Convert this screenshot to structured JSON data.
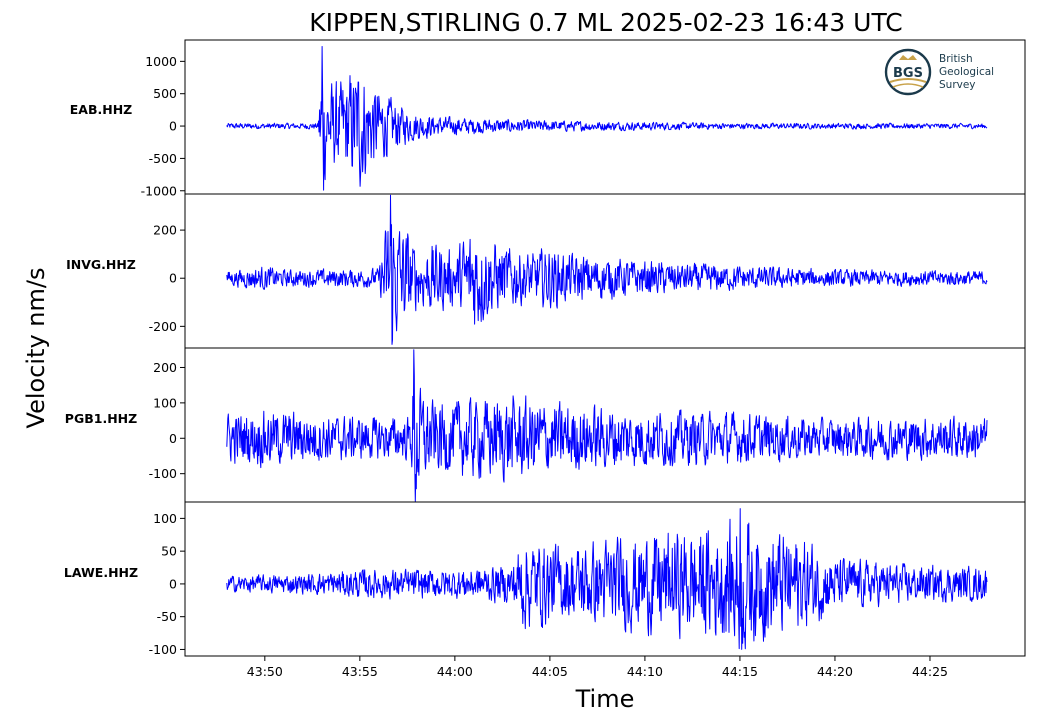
{
  "figure": {
    "title": "KIPPEN,STIRLING 0.7 ML   2025-02-23 16:43 UTC",
    "ylabel": "Velocity nm/s",
    "xlabel": "Time"
  },
  "logo": {
    "badge": "BGS",
    "lines": [
      "British",
      "Geological",
      "Survey"
    ]
  },
  "colors": {
    "trace": "#0000ff",
    "frame": "#000000"
  },
  "chart_data": {
    "type": "line",
    "x_unit": "mm:ss (16:mm:ss UTC)",
    "x_range": [
      "43:45.8",
      "44:30.0"
    ],
    "x_ticks": [
      "43:50",
      "43:55",
      "44:00",
      "44:05",
      "44:10",
      "44:15",
      "44:20",
      "44:25"
    ],
    "x_tick_values_s": [
      50,
      55,
      60,
      65,
      70,
      75,
      80,
      85
    ],
    "trace_start_s": 48,
    "trace_end_s": 88,
    "shared_x": true,
    "grid": false,
    "panels": [
      {
        "station": "EAB.HHZ",
        "ylim": [
          -1050,
          1330
        ],
        "yticks": [
          1000,
          500,
          0,
          -500,
          -1000
        ],
        "ytick_labels": [
          "1000",
          "500",
          "0",
          "-500",
          "-1000"
        ],
        "peak_max": 1230,
        "peak_min": -990,
        "envelope": [
          [
            48,
            45
          ],
          [
            52.8,
            45
          ],
          [
            53.0,
            1230
          ],
          [
            53.3,
            700
          ],
          [
            54,
            650
          ],
          [
            55,
            1000
          ],
          [
            55.5,
            700
          ],
          [
            56.5,
            450
          ],
          [
            57.5,
            250
          ],
          [
            59,
            150
          ],
          [
            61,
            120
          ],
          [
            64,
            90
          ],
          [
            68,
            70
          ],
          [
            75,
            45
          ],
          [
            88,
            40
          ]
        ]
      },
      {
        "station": "INVG.HHZ",
        "ylim": [
          -290,
          350
        ],
        "yticks": [
          200,
          0,
          -200
        ],
        "ytick_labels": [
          "200",
          "0",
          "-200"
        ],
        "peak_max": 345,
        "peak_min": -275,
        "envelope": [
          [
            48,
            30
          ],
          [
            50,
            50
          ],
          [
            51,
            35
          ],
          [
            56,
            40
          ],
          [
            56.6,
            330
          ],
          [
            57,
            250
          ],
          [
            57.5,
            200
          ],
          [
            58,
            120
          ],
          [
            59,
            150
          ],
          [
            60,
            110
          ],
          [
            61,
            230
          ],
          [
            62,
            150
          ],
          [
            64,
            100
          ],
          [
            65,
            130
          ],
          [
            66,
            100
          ],
          [
            70,
            70
          ],
          [
            75,
            50
          ],
          [
            80,
            35
          ],
          [
            88,
            30
          ]
        ]
      },
      {
        "station": "PGB1.HHZ",
        "ylim": [
          -180,
          255
        ],
        "yticks": [
          200,
          100,
          0,
          -100
        ],
        "ytick_labels": [
          "200",
          "100",
          "0",
          "-100"
        ],
        "peak_max": 250,
        "peak_min": -178,
        "envelope": [
          [
            48,
            70
          ],
          [
            50,
            80
          ],
          [
            52,
            70
          ],
          [
            55,
            60
          ],
          [
            57.7,
            60
          ],
          [
            57.85,
            245
          ],
          [
            58.2,
            130
          ],
          [
            59,
            100
          ],
          [
            61,
            110
          ],
          [
            63,
            120
          ],
          [
            66,
            95
          ],
          [
            70,
            80
          ],
          [
            75,
            70
          ],
          [
            80,
            55
          ],
          [
            84,
            60
          ],
          [
            88,
            60
          ]
        ]
      },
      {
        "station": "LAWE.HHZ",
        "ylim": [
          -110,
          125
        ],
        "yticks": [
          100,
          50,
          0,
          -50,
          -100
        ],
        "ytick_labels": [
          "100",
          "50",
          "0",
          "-50",
          "-100"
        ],
        "peak_max": 115,
        "peak_min": -100,
        "envelope": [
          [
            48,
            12
          ],
          [
            52,
            15
          ],
          [
            55,
            22
          ],
          [
            60,
            22
          ],
          [
            63,
            30
          ],
          [
            63.5,
            70
          ],
          [
            66,
            55
          ],
          [
            68,
            65
          ],
          [
            70,
            75
          ],
          [
            72,
            80
          ],
          [
            74,
            85
          ],
          [
            75,
            110
          ],
          [
            76,
            85
          ],
          [
            78,
            75
          ],
          [
            80,
            40
          ],
          [
            84,
            28
          ],
          [
            88,
            25
          ]
        ]
      }
    ]
  }
}
